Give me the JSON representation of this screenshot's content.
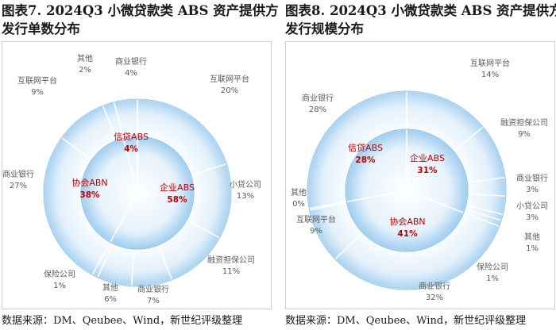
{
  "source_note": "数据来源：DM、Qeubee、Wind，新世纪评级整理",
  "chart_data": [
    {
      "type": "pie",
      "title_line1": "图表7. 2024Q3 小微贷款类 ABS 资产提供方",
      "title_line2": "发行单数分布",
      "inner": [
        {
          "label": "企业ABS",
          "pct": "58%",
          "value": 58
        },
        {
          "label": "协会ABN",
          "pct": "38%",
          "value": 38
        },
        {
          "label": "信贷ABS",
          "pct": "4%",
          "value": 4
        }
      ],
      "outer": [
        {
          "label": "互联网平台",
          "pct": "20%",
          "value": 20
        },
        {
          "label": "小贷公司",
          "pct": "13%",
          "value": 13
        },
        {
          "label": "融资担保公司",
          "pct": "11%",
          "value": 11
        },
        {
          "label": "商业银行",
          "pct": "7%",
          "value": 7
        },
        {
          "label": "其他",
          "pct": "6%",
          "value": 6
        },
        {
          "label": "保险公司",
          "pct": "1%",
          "value": 1
        },
        {
          "label": "商业银行",
          "pct": "27%",
          "value": 27
        },
        {
          "label": "互联网平台",
          "pct": "9%",
          "value": 9
        },
        {
          "label": "其他",
          "pct": "2%",
          "value": 2
        },
        {
          "label": "商业银行",
          "pct": "4%",
          "value": 4
        }
      ]
    },
    {
      "type": "pie",
      "title_line1": "图表8. 2024Q3 小微贷款类 ABS 资产提供方",
      "title_line2": "发行规模分布",
      "inner": [
        {
          "label": "企业ABS",
          "pct": "31%",
          "value": 31
        },
        {
          "label": "协会ABN",
          "pct": "41%",
          "value": 41
        },
        {
          "label": "信贷ABS",
          "pct": "28%",
          "value": 28
        }
      ],
      "outer": [
        {
          "label": "互联网平台",
          "pct": "14%",
          "value": 14
        },
        {
          "label": "融资担保公司",
          "pct": "9%",
          "value": 9
        },
        {
          "label": "商业银行",
          "pct": "3%",
          "value": 3
        },
        {
          "label": "小贷公司",
          "pct": "3%",
          "value": 3
        },
        {
          "label": "其他",
          "pct": "1%",
          "value": 1
        },
        {
          "label": "保险公司",
          "pct": "1%",
          "value": 1
        },
        {
          "label": "商业银行",
          "pct": "32%",
          "value": 32
        },
        {
          "label": "互联网平台",
          "pct": "9%",
          "value": 9
        },
        {
          "label": "其他",
          "pct": "0%",
          "value": 0.3
        },
        {
          "label": "商业银行",
          "pct": "28%",
          "value": 28
        }
      ]
    }
  ]
}
